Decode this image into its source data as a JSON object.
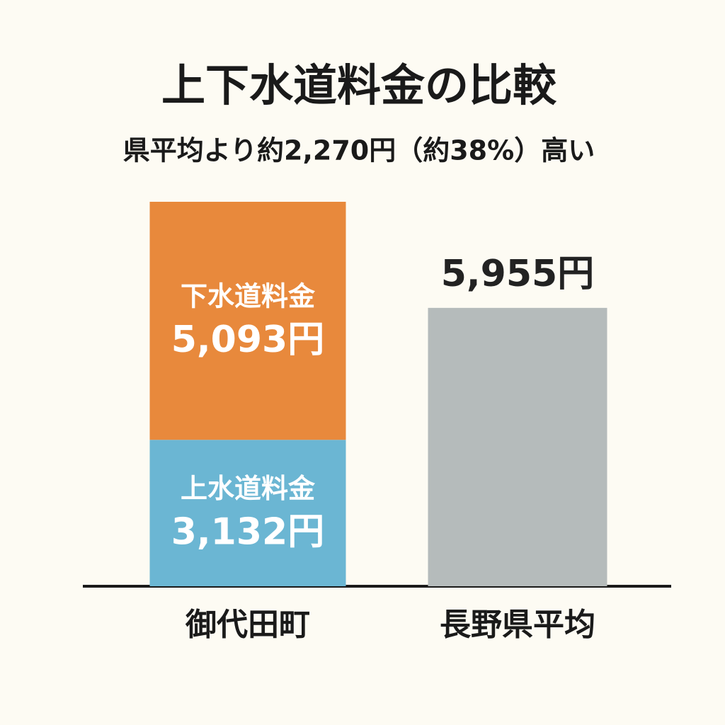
{
  "chart_data": {
    "type": "bar",
    "stacked": true,
    "title": "上下水道料金の比較",
    "subtitle": "県平均より約2,270円（約38%）高い",
    "categories": [
      "御代田町",
      "長野県平均"
    ],
    "series": [
      {
        "name": "上水道料金",
        "color": "#6bb6d3",
        "values": [
          3132,
          null
        ],
        "value_labels": [
          "3,132円",
          null
        ]
      },
      {
        "name": "下水道料金",
        "color": "#e8893c",
        "values": [
          5093,
          null
        ],
        "value_labels": [
          "5,093円",
          null
        ]
      },
      {
        "color": "#b5bbbb",
        "values": [
          null,
          5955
        ],
        "value_labels": [
          null,
          "5,955円"
        ]
      }
    ]
  }
}
